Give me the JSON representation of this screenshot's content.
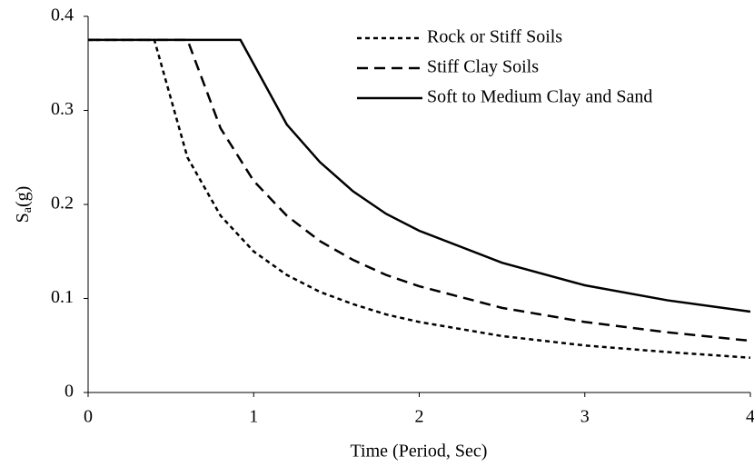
{
  "chart_data": {
    "type": "line",
    "xlabel": "Time (Period, Sec)",
    "ylabel": {
      "main": "S",
      "sub": "a",
      "unit": "(g)"
    },
    "xlim": [
      0,
      4
    ],
    "xticks": [
      0,
      1,
      2,
      3,
      4
    ],
    "ylim": [
      0,
      0.4
    ],
    "yticks": [
      0,
      0.1,
      0.2,
      0.3,
      0.4
    ],
    "grid": false,
    "legend": "top-right",
    "series": [
      {
        "name": "Rock or Stiff Soils",
        "color": "#000000",
        "dash": "dotted",
        "x": [
          0,
          0.4,
          0.6,
          0.8,
          1,
          1.2,
          1.4,
          1.6,
          1.8,
          2,
          2.5,
          3,
          3.5,
          4
        ],
        "values": [
          0.375,
          0.375,
          0.25,
          0.188,
          0.15,
          0.125,
          0.107,
          0.094,
          0.083,
          0.075,
          0.06,
          0.05,
          0.043,
          0.037
        ]
      },
      {
        "name": "Stiff Clay Soils",
        "color": "#000000",
        "dash": "dashed",
        "x": [
          0,
          0.6,
          0.8,
          1,
          1.2,
          1.4,
          1.6,
          1.8,
          2,
          2.5,
          3,
          3.5,
          4
        ],
        "values": [
          0.375,
          0.375,
          0.281,
          0.225,
          0.188,
          0.161,
          0.141,
          0.125,
          0.113,
          0.09,
          0.075,
          0.064,
          0.055
        ]
      },
      {
        "name": "Soft to Medium Clay and Sand",
        "color": "#000000",
        "dash": "solid",
        "x": [
          0,
          0.92,
          1.2,
          1.4,
          1.6,
          1.8,
          2,
          2.5,
          3,
          3.5,
          4
        ],
        "values": [
          0.375,
          0.375,
          0.285,
          0.245,
          0.214,
          0.19,
          0.172,
          0.138,
          0.114,
          0.098,
          0.086
        ]
      }
    ]
  }
}
